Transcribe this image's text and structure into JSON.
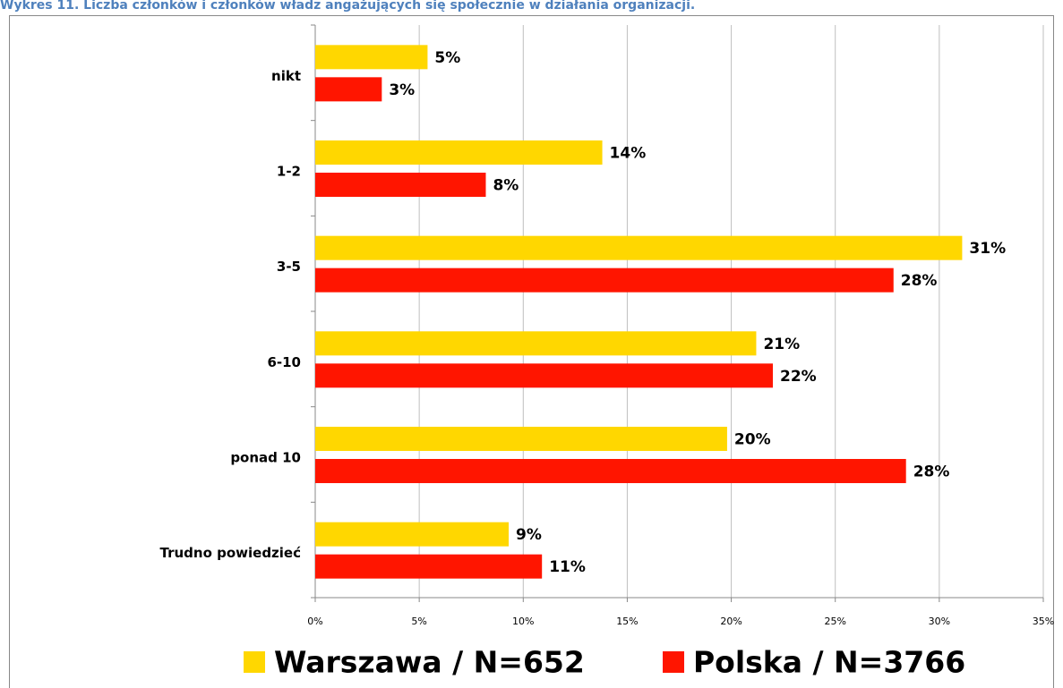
{
  "chart_data": {
    "type": "barh",
    "title": "Wykres 11. Liczba członków i członków władz angażujących się społecznie w działania organizacji.",
    "categories": [
      "nikt",
      "1-2",
      "3-5",
      "6-10",
      "ponad 10",
      "Trudno powiedzieć"
    ],
    "series": [
      {
        "name": "Warszawa / N=652",
        "color": "#FFD700",
        "values": [
          5.4,
          13.8,
          31.1,
          21.2,
          19.8,
          9.3
        ],
        "value_labels": [
          "5%",
          "14%",
          "31%",
          "21%",
          "20%",
          "9%"
        ]
      },
      {
        "name": "Polska / N=3766",
        "color": "#FF1500",
        "values": [
          3.2,
          8.2,
          27.8,
          22.0,
          28.4,
          10.9
        ],
        "value_labels": [
          "3%",
          "8%",
          "28%",
          "22%",
          "28%",
          "11%"
        ]
      }
    ],
    "xlim": [
      0,
      35
    ],
    "xticks": [
      {
        "value": 0,
        "label": "0%"
      },
      {
        "value": 5,
        "label": "5%"
      },
      {
        "value": 10,
        "label": "10%"
      },
      {
        "value": 15,
        "label": "15%"
      },
      {
        "value": 20,
        "label": "20%"
      },
      {
        "value": 25,
        "label": "25%"
      },
      {
        "value": 30,
        "label": "30%"
      },
      {
        "value": 35,
        "label": "35%"
      }
    ],
    "grid": true,
    "legend": "bottom"
  }
}
